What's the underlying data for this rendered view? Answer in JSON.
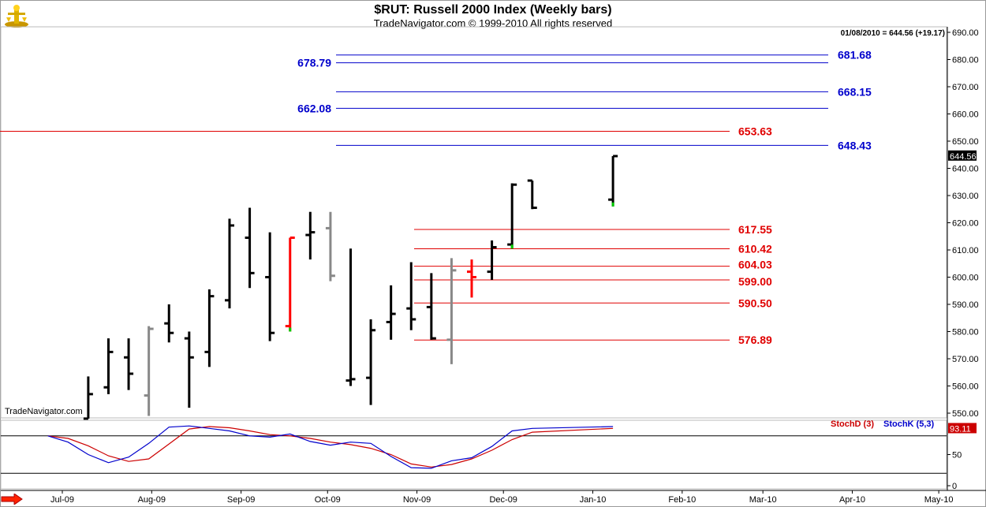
{
  "header": {
    "title": "$RUT:  Russell 2000 Index  (Weekly bars)",
    "subtitle": "TradeNavigator.com © 1999-2010 All rights reserved",
    "last_value": "01/08/2010 = 644.56 (+19.17)",
    "watermark": "TradeNavigator.com"
  },
  "colors": {
    "bar_up": "#000000",
    "bar_gray": "#888888",
    "bar_red": "#ff0000",
    "tick_green": "#00cc00",
    "level_red": "#e00000",
    "level_blue": "#0000cc",
    "stoch_d": "#cc0000",
    "stoch_k": "#0000cc",
    "nav_arrow": "#ff2200"
  },
  "icons": {
    "logo": "trade-navigator-logo-icon",
    "scroll": "right-arrow-icon"
  },
  "chart_data": [
    {
      "type": "ohlc",
      "title": "$RUT:  Russell 2000 Index  (Weekly bars)",
      "ylim": [
        544,
        694
      ],
      "yticks": [
        550,
        560,
        570,
        580,
        590,
        600,
        610,
        620,
        630,
        640,
        650,
        660,
        670,
        680,
        690
      ],
      "ytick_labels": [
        "550.00",
        "560.00",
        "570.00",
        "580.00",
        "590.00",
        "600.00",
        "610.00",
        "620.00",
        "630.00",
        "640.00",
        "650.00",
        "660.00",
        "670.00",
        "680.00",
        "690.00"
      ],
      "last_price_label": "644.56",
      "last_price": 644.56,
      "xlabels": [
        "Jul-09",
        "Aug-09",
        "Sep-09",
        "Oct-09",
        "Nov-09",
        "Dec-09",
        "Jan-10",
        "Feb-10",
        "Mar-10",
        "Apr-10",
        "May-10"
      ],
      "bars": [
        {
          "date": "2009-07-10",
          "o": 548,
          "h": 563.5,
          "l": 548,
          "c": 557,
          "color": "black"
        },
        {
          "date": "2009-07-17",
          "o": 559.5,
          "h": 577.5,
          "l": 557,
          "c": 572.5,
          "color": "black"
        },
        {
          "date": "2009-07-24",
          "o": 570.5,
          "h": 577.5,
          "l": 558.5,
          "c": 564.5,
          "color": "black"
        },
        {
          "date": "2009-07-31",
          "o": 556.5,
          "h": 582,
          "l": 549,
          "c": 581,
          "color": "gray"
        },
        {
          "date": "2009-08-07",
          "o": 583,
          "h": 590,
          "l": 576,
          "c": 579.5,
          "color": "black"
        },
        {
          "date": "2009-08-14",
          "o": 577.5,
          "h": 580,
          "l": 552,
          "c": 570.5,
          "color": "black"
        },
        {
          "date": "2009-08-21",
          "o": 572.5,
          "h": 595.5,
          "l": 567,
          "c": 593,
          "color": "black"
        },
        {
          "date": "2009-08-28",
          "o": 591.5,
          "h": 621.5,
          "l": 588.5,
          "c": 619,
          "color": "black"
        },
        {
          "date": "2009-09-04",
          "o": 614.5,
          "h": 625.5,
          "l": 596,
          "c": 601.5,
          "color": "black"
        },
        {
          "date": "2009-09-11",
          "o": 600,
          "h": 616.5,
          "l": 576.5,
          "c": 579.5,
          "color": "black"
        },
        {
          "date": "2009-09-18",
          "o": 582,
          "h": 614.5,
          "l": 580,
          "c": 614.5,
          "color": "red",
          "close_tick": "green"
        },
        {
          "date": "2009-09-25",
          "o": 615.5,
          "h": 624,
          "l": 606.5,
          "c": 616.5,
          "color": "black"
        },
        {
          "date": "2009-10-02",
          "o": 618,
          "h": 624,
          "l": 598.5,
          "c": 600.5,
          "color": "gray"
        },
        {
          "date": "2009-10-09",
          "o": 562,
          "h": 610.5,
          "l": 560,
          "c": 562.5,
          "color": "black"
        },
        {
          "date": "2009-10-16",
          "o": 563,
          "h": 584.5,
          "l": 553,
          "c": 580.5,
          "color": "black"
        },
        {
          "date": "2009-10-23",
          "o": 583.5,
          "h": 597,
          "l": 577,
          "c": 586.5,
          "color": "black"
        },
        {
          "date": "2009-10-30",
          "o": 588.5,
          "h": 605.5,
          "l": 580.5,
          "c": 584.5,
          "color": "black"
        },
        {
          "date": "2009-11-06",
          "o": 589,
          "h": 601.5,
          "l": 577,
          "c": 577.5,
          "color": "black"
        },
        {
          "date": "2009-11-13",
          "o": 577,
          "h": 607,
          "l": 568,
          "c": 602.5,
          "color": "gray"
        },
        {
          "date": "2009-11-20",
          "o": 602,
          "h": 606.5,
          "l": 592.5,
          "c": 600,
          "color": "red"
        },
        {
          "date": "2009-11-27",
          "o": 602,
          "h": 613.5,
          "l": 599,
          "c": 611,
          "color": "black"
        },
        {
          "date": "2009-12-04",
          "o": 612,
          "h": 634.5,
          "l": 610.5,
          "c": 634,
          "color": "black",
          "close_tick": "green"
        },
        {
          "date": "2009-12-11",
          "o": 635.5,
          "h": 635.5,
          "l": 625,
          "c": 625.5,
          "color": "black"
        },
        {
          "date": "2010-01-08",
          "o": 628.5,
          "h": 644.5,
          "l": 626,
          "c": 644.5,
          "color": "black",
          "low_tick": "green"
        }
      ],
      "levels": [
        {
          "value": 681.68,
          "label": "681.68",
          "color": "blue"
        },
        {
          "value": 678.79,
          "label": "678.79",
          "color": "blue"
        },
        {
          "value": 668.15,
          "label": "668.15",
          "color": "blue"
        },
        {
          "value": 662.08,
          "label": "662.08",
          "color": "blue"
        },
        {
          "value": 653.63,
          "label": "653.63",
          "color": "red"
        },
        {
          "value": 648.43,
          "label": "648.43",
          "color": "blue"
        },
        {
          "value": 617.55,
          "label": "617.55",
          "color": "red"
        },
        {
          "value": 610.42,
          "label": "610.42",
          "color": "red"
        },
        {
          "value": 604.03,
          "label": "604.03",
          "color": "red"
        },
        {
          "value": 599.0,
          "label": "599.00",
          "color": "red"
        },
        {
          "value": 590.5,
          "label": "590.50",
          "color": "red"
        },
        {
          "value": 576.89,
          "label": "576.89",
          "color": "red"
        }
      ]
    },
    {
      "type": "line",
      "legend": [
        "StochD (3)",
        "StochK (5,3)"
      ],
      "ylim": [
        -10,
        110
      ],
      "yticks": [
        0,
        50
      ],
      "ytick_labels": [
        "0",
        "50"
      ],
      "hlines": [
        20,
        80
      ],
      "last_label": "93.11",
      "last_value": 93.11,
      "x": [
        "2009-06-26",
        "2009-07-03",
        "2009-07-10",
        "2009-07-17",
        "2009-07-24",
        "2009-07-31",
        "2009-08-07",
        "2009-08-14",
        "2009-08-21",
        "2009-08-28",
        "2009-09-04",
        "2009-09-11",
        "2009-09-18",
        "2009-09-25",
        "2009-10-02",
        "2009-10-09",
        "2009-10-16",
        "2009-10-23",
        "2009-10-30",
        "2009-11-06",
        "2009-11-13",
        "2009-11-20",
        "2009-11-27",
        "2009-12-04",
        "2009-12-11",
        "2010-01-08"
      ],
      "series": [
        {
          "name": "StochD (3)",
          "values": [
            80,
            76,
            64,
            48,
            39,
            43,
            67,
            91,
            95,
            93,
            88,
            82,
            80,
            76,
            70,
            66,
            60,
            50,
            35,
            30,
            34,
            43,
            57,
            74,
            86,
            92
          ]
        },
        {
          "name": "StochK (5,3)",
          "values": [
            80,
            70,
            50,
            37,
            46,
            68,
            94,
            96,
            92,
            88,
            80,
            78,
            83,
            71,
            65,
            70,
            68,
            47,
            29,
            28,
            40,
            45,
            63,
            88,
            92,
            95
          ]
        }
      ]
    }
  ]
}
